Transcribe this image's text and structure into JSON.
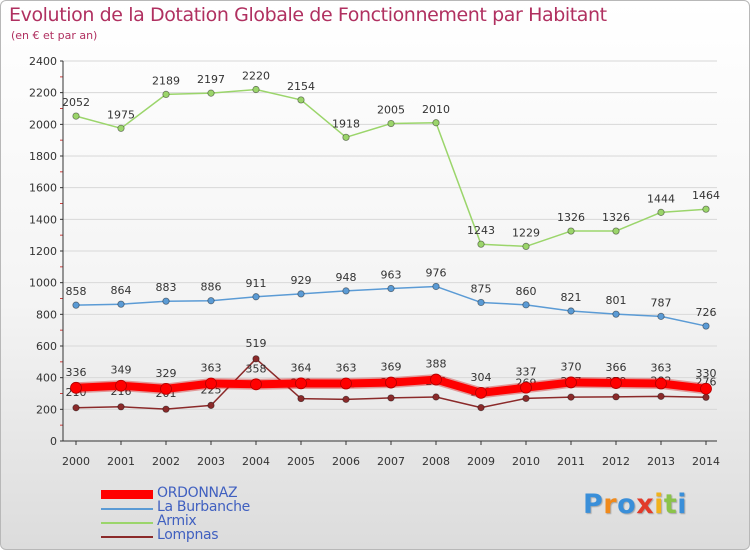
{
  "title": "Evolution de la Dotation Globale de Fonctionnement par Habitant",
  "subtitle": "(en € et par an)",
  "logo_text": "Proxiti",
  "colors": {
    "title": "#b03060",
    "legend_text": "#4060c0",
    "axis": "#333333",
    "grid": "#d8d8d8"
  },
  "chart_data": {
    "type": "line",
    "title": "Evolution de la Dotation Globale de Fonctionnement par Habitant",
    "subtitle": "(en € et par an)",
    "xlabel": "",
    "ylabel": "",
    "x": [
      "2000",
      "2001",
      "2002",
      "2003",
      "2004",
      "2005",
      "2006",
      "2007",
      "2008",
      "2009",
      "2010",
      "2011",
      "2012",
      "2013",
      "2014"
    ],
    "ylim": [
      0,
      2400
    ],
    "yticks": [
      0,
      200,
      400,
      600,
      800,
      1000,
      1200,
      1400,
      1600,
      1800,
      2000,
      2200,
      2400
    ],
    "ytick_labels": [
      "0",
      "200",
      "400",
      "600",
      "800",
      "1000",
      "1200",
      "1400",
      "1600",
      "1800",
      "2000",
      "2200",
      "2400"
    ],
    "grid": true,
    "legend_position": "bottom-left",
    "series": [
      {
        "name": "ORDONNAZ",
        "color": "#ff0000",
        "values": [
          336,
          349,
          329,
          363,
          358,
          364,
          363,
          369,
          388,
          304,
          337,
          370,
          366,
          363,
          330
        ]
      },
      {
        "name": "La Burbanche",
        "color": "#5b9bd5",
        "values": [
          858,
          864,
          883,
          886,
          911,
          929,
          948,
          963,
          976,
          875,
          860,
          821,
          801,
          787,
          726
        ]
      },
      {
        "name": "Armix",
        "color": "#9bd56b",
        "values": [
          2052,
          1975,
          2189,
          2197,
          2220,
          2154,
          1918,
          2005,
          2010,
          1243,
          1229,
          1326,
          1326,
          1444,
          1464
        ]
      },
      {
        "name": "Lompnas",
        "color": "#8b2a2a",
        "values": [
          210,
          216,
          201,
          225,
          519,
          268,
          263,
          272,
          278,
          211,
          269,
          277,
          279,
          282,
          276
        ]
      }
    ]
  }
}
